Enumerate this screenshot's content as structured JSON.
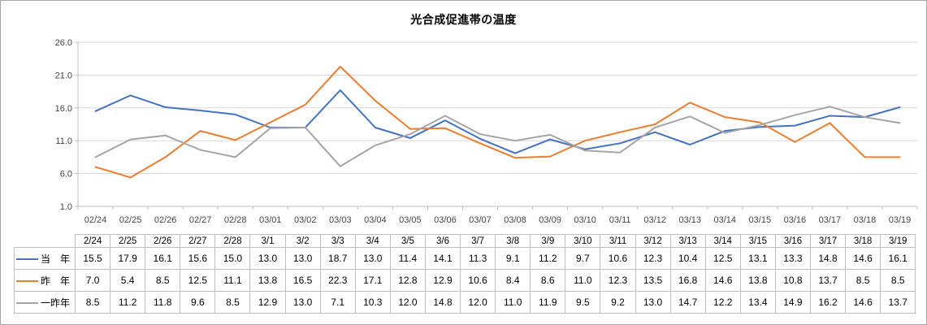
{
  "panel": {
    "background": "#ffffff",
    "outer_border_color": "#a6a6a6"
  },
  "chart_data": {
    "type": "line",
    "title": "光合成促進帯の温度",
    "categories": [
      "02/24",
      "02/25",
      "02/26",
      "02/27",
      "02/28",
      "03/01",
      "03/02",
      "03/03",
      "03/04",
      "03/05",
      "03/06",
      "03/07",
      "03/08",
      "03/09",
      "03/10",
      "03/11",
      "03/12",
      "03/13",
      "03/14",
      "03/15",
      "03/16",
      "03/17",
      "03/18",
      "03/19"
    ],
    "table_categories": [
      "2/24",
      "2/25",
      "2/26",
      "2/27",
      "2/28",
      "3/1",
      "3/2",
      "3/3",
      "3/4",
      "3/5",
      "3/6",
      "3/7",
      "3/8",
      "3/9",
      "3/10",
      "3/11",
      "3/12",
      "3/13",
      "3/14",
      "3/15",
      "3/16",
      "3/17",
      "3/18",
      "3/19"
    ],
    "series": [
      {
        "name": "当　年",
        "color": "#4472C4",
        "values": [
          15.5,
          17.9,
          16.1,
          15.6,
          15.0,
          13.0,
          13.0,
          18.7,
          13.0,
          11.4,
          14.1,
          11.3,
          9.1,
          11.2,
          9.7,
          10.6,
          12.3,
          10.4,
          12.5,
          13.1,
          13.3,
          14.8,
          14.6,
          16.1
        ]
      },
      {
        "name": "昨　年",
        "color": "#ED7D31",
        "values": [
          7.0,
          5.4,
          8.5,
          12.5,
          11.1,
          13.8,
          16.5,
          22.3,
          17.1,
          12.8,
          12.9,
          10.6,
          8.4,
          8.6,
          11.0,
          12.3,
          13.5,
          16.8,
          14.6,
          13.8,
          10.8,
          13.7,
          8.5,
          8.5
        ]
      },
      {
        "name": "一昨年",
        "color": "#A5A5A5",
        "values": [
          8.5,
          11.2,
          11.8,
          9.6,
          8.5,
          12.9,
          13.0,
          7.1,
          10.3,
          12.0,
          14.8,
          12.0,
          11.0,
          11.9,
          9.5,
          9.2,
          13.0,
          14.7,
          12.2,
          13.4,
          14.9,
          16.2,
          14.6,
          13.7
        ]
      }
    ],
    "ylim": [
      1.0,
      26.0
    ],
    "yticks": [
      "26.0",
      "21.0",
      "16.0",
      "11.0",
      "6.0",
      "1.0"
    ],
    "value_decimals": 1,
    "grid": true,
    "legend_position": "table-left-column",
    "colors": {
      "gridline": "#d9d9d9",
      "axis_line": "#bfbfbf",
      "tick_label": "#444444",
      "table_border": "#bfbfbf",
      "table_text": "#000000"
    }
  }
}
